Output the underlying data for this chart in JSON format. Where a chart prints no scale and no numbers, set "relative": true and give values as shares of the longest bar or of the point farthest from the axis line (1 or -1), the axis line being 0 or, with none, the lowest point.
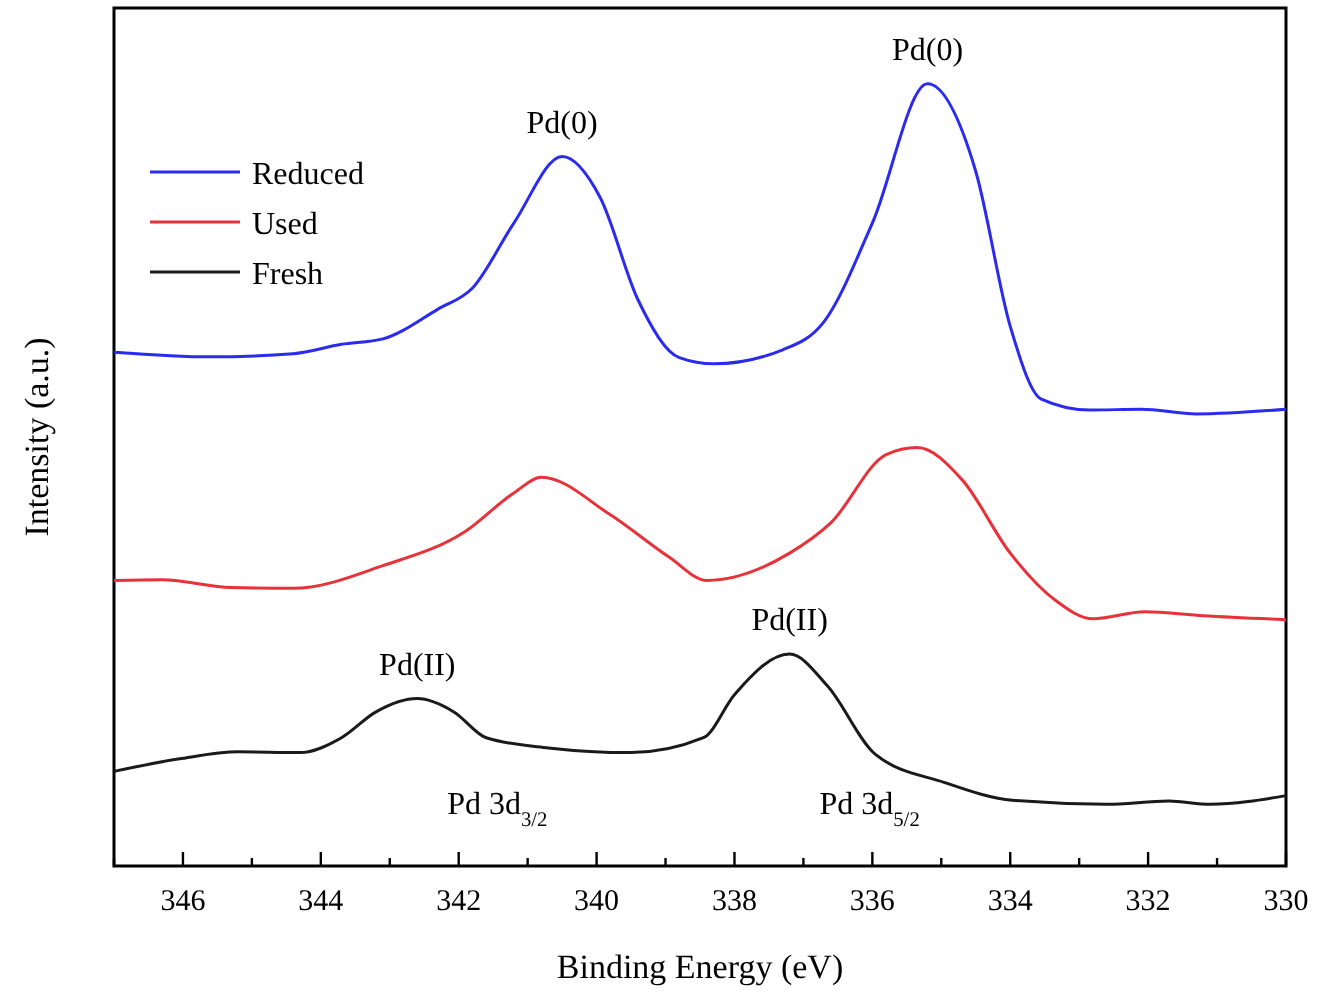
{
  "chart_data": {
    "type": "line",
    "relative": true,
    "xlabel": "Binding Energy (eV)",
    "ylabel": "Intensity (a.u.)",
    "xlim": [
      347,
      330
    ],
    "xticks": [
      {
        "value": 347,
        "label": null
      },
      346,
      {
        "value": 345,
        "label": null
      },
      344,
      {
        "value": 343,
        "label": null
      },
      342,
      {
        "value": 341,
        "label": null
      },
      340,
      {
        "value": 339,
        "label": null
      },
      338,
      {
        "value": 337,
        "label": null
      },
      336,
      {
        "value": 335,
        "label": null
      },
      334,
      {
        "value": 333,
        "label": null
      },
      332,
      {
        "value": 331,
        "label": null
      },
      330
    ],
    "legend": "top left",
    "grid": false,
    "line_style": "solid",
    "series": [
      {
        "name": "Reduced",
        "color": "#2b2bf0",
        "x": [
          347,
          345.6,
          344.4,
          343.7,
          343.1,
          342.3,
          341.8,
          341.2,
          340.5,
          339.95,
          339.4,
          338.8,
          338.3,
          337.3,
          336.7,
          336.0,
          335.2,
          334.5,
          334.0,
          333.55,
          332.85,
          332.1,
          331.3,
          330
        ],
        "values": [
          0.657,
          0.651,
          0.655,
          0.667,
          0.674,
          0.712,
          0.739,
          0.822,
          0.907,
          0.855,
          0.724,
          0.65,
          0.642,
          0.66,
          0.696,
          0.822,
          1.0,
          0.888,
          0.69,
          0.597,
          0.583,
          0.584,
          0.578,
          0.584
        ]
      },
      {
        "name": "Used",
        "color": "#e8323a",
        "x": [
          347,
          346.3,
          345.3,
          344.4,
          343.1,
          341.9,
          341.2,
          340.8,
          339.8,
          338.95,
          338.4,
          337.2,
          336.6,
          335.8,
          335.35,
          334.7,
          334.0,
          333.35,
          332.8,
          332.05,
          331.2,
          330
        ],
        "values": [
          0.365,
          0.366,
          0.356,
          0.355,
          0.384,
          0.428,
          0.477,
          0.497,
          0.449,
          0.395,
          0.365,
          0.4,
          0.439,
          0.526,
          0.535,
          0.494,
          0.4,
          0.34,
          0.316,
          0.325,
          0.32,
          0.315
        ]
      },
      {
        "name": "Fresh",
        "color": "#1a1a1a",
        "x": [
          347,
          346.05,
          345.2,
          344.3,
          343.7,
          343.2,
          342.6,
          342.07,
          341.6,
          340.7,
          339.5,
          338.45,
          338.0,
          337.2,
          336.65,
          335.96,
          334.96,
          333.97,
          332.6,
          331.7,
          331.1,
          330
        ],
        "values": [
          0.121,
          0.137,
          0.146,
          0.145,
          0.164,
          0.197,
          0.214,
          0.197,
          0.164,
          0.151,
          0.145,
          0.164,
          0.219,
          0.271,
          0.23,
          0.143,
          0.107,
          0.084,
          0.079,
          0.083,
          0.079,
          0.09
        ]
      }
    ],
    "annotations": [
      {
        "text": "Pd(0)",
        "x": 340.5,
        "y": 0.907
      },
      {
        "text": "Pd(0)",
        "x": 335.2,
        "y": 1.0
      },
      {
        "text": "Pd(II)",
        "x": 342.6,
        "y": 0.214
      },
      {
        "text": "Pd(II)",
        "x": 337.2,
        "y": 0.271
      },
      "Pd 3d$_{3/2}$",
      "Pd 3d$_{5/2}$"
    ]
  }
}
